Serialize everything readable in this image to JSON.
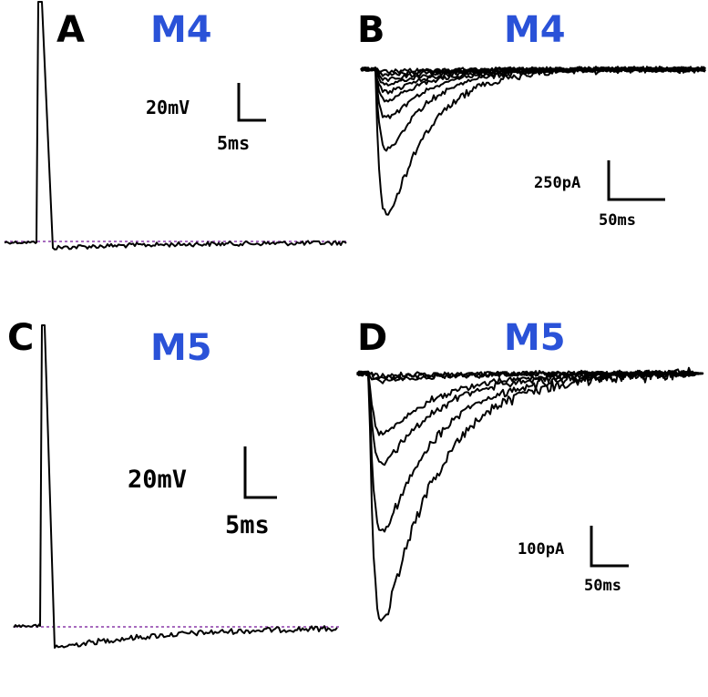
{
  "colors": {
    "cell_label": "#2a52d8",
    "trace": "#000000",
    "baseline": "#8a3aa8"
  },
  "panels": [
    {
      "id": "A",
      "letter": "A",
      "cell": "M4",
      "kind": "voltage",
      "scale_v": "20mV",
      "scale_t": "5ms"
    },
    {
      "id": "B",
      "letter": "B",
      "cell": "M4",
      "kind": "current",
      "scale_v": "250pA",
      "scale_t": "50ms"
    },
    {
      "id": "C",
      "letter": "C",
      "cell": "M5",
      "kind": "voltage",
      "scale_v": "20mV",
      "scale_t": "5ms"
    },
    {
      "id": "D",
      "letter": "D",
      "cell": "M5",
      "kind": "current",
      "scale_v": "100pA",
      "scale_t": "50ms"
    }
  ]
}
